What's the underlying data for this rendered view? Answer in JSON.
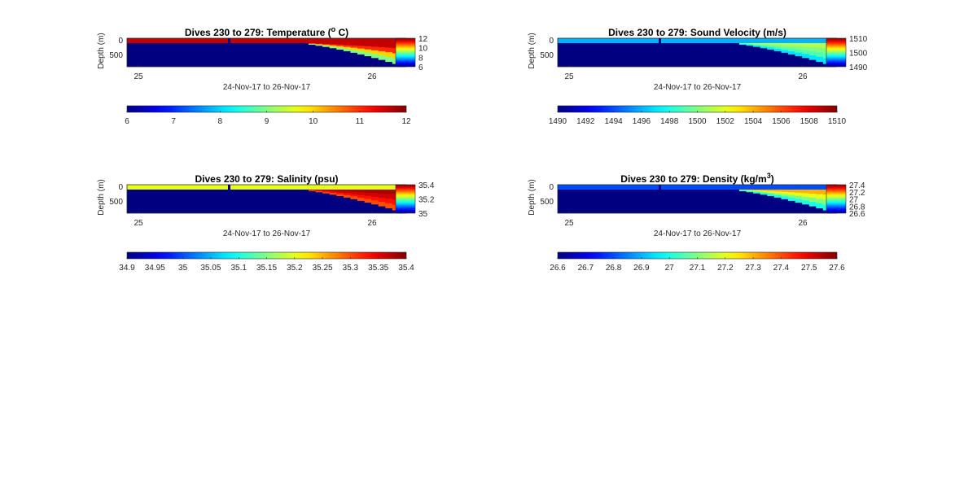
{
  "figure": {
    "time_label": "24-Nov-17 to 26-Nov-17",
    "ylabel": "Depth (m)",
    "y_ticks": [
      "0",
      "500"
    ],
    "x_ticks": [
      "25",
      "26"
    ]
  },
  "chart_data": [
    {
      "type": "heatmap",
      "title_prefix": "Dives 230 to 279: Temperature (",
      "title_sup": "o",
      "title_suffix": " C)",
      "xlabel": "24-Nov-17 to 26-Nov-17",
      "ylabel": "Depth (m)",
      "x_ticks": [
        "25",
        "26"
      ],
      "y_ticks": [
        "0",
        "500"
      ],
      "colorbar_ticks": [
        "12",
        "10",
        "8",
        "6"
      ],
      "wide_colorbar_ticks": [
        "6",
        "7",
        "8",
        "9",
        "10",
        "11",
        "12"
      ],
      "color_range": [
        6,
        12
      ],
      "surface_value": 11.6,
      "deep_value": 6.0,
      "shallow_gradient": [
        9,
        10,
        11,
        11.6
      ]
    },
    {
      "type": "heatmap",
      "title_prefix": "Dives 230 to 279: Sound Velocity (m/s)",
      "title_sup": "",
      "title_suffix": "",
      "xlabel": "24-Nov-17 to 26-Nov-17",
      "ylabel": "Depth (m)",
      "x_ticks": [
        "25",
        "26"
      ],
      "y_ticks": [
        "0",
        "500"
      ],
      "colorbar_ticks": [
        "1510",
        "1500",
        "1490"
      ],
      "wide_colorbar_ticks": [
        "1490",
        "1492",
        "1494",
        "1496",
        "1498",
        "1500",
        "1502",
        "1504",
        "1506",
        "1508",
        "1510"
      ],
      "color_range": [
        1490,
        1510
      ],
      "surface_value": 1496,
      "deep_value": 1490,
      "shallow_gradient": [
        1497,
        1499,
        1500,
        1501
      ]
    },
    {
      "type": "heatmap",
      "title_prefix": "Dives 230 to 279: Salinity (psu)",
      "title_sup": "",
      "title_suffix": "",
      "xlabel": "24-Nov-17 to 26-Nov-17",
      "ylabel": "Depth (m)",
      "x_ticks": [
        "25",
        "26"
      ],
      "y_ticks": [
        "0",
        "500"
      ],
      "colorbar_ticks": [
        "35.4",
        "35.2",
        "35"
      ],
      "wide_colorbar_ticks": [
        "34.9",
        "34.95",
        "35",
        "35.05",
        "35.1",
        "35.15",
        "35.2",
        "35.25",
        "35.3",
        "35.35",
        "35.4"
      ],
      "color_range": [
        34.9,
        35.4
      ],
      "surface_value": 35.2,
      "deep_value": 34.9,
      "shallow_gradient": [
        35.3,
        35.33,
        35.36,
        35.38
      ]
    },
    {
      "type": "heatmap",
      "title_prefix": "Dives 230 to 279: Density (kg/m",
      "title_sup": "3",
      "title_suffix": ")",
      "xlabel": "24-Nov-17 to 26-Nov-17",
      "ylabel": "Depth (m)",
      "x_ticks": [
        "25",
        "26"
      ],
      "y_ticks": [
        "0",
        "500"
      ],
      "colorbar_ticks": [
        "27.4",
        "27.2",
        "27",
        "26.8",
        "26.6"
      ],
      "wide_colorbar_ticks": [
        "26.6",
        "26.7",
        "26.8",
        "26.9",
        "27",
        "27.1",
        "27.2",
        "27.3",
        "27.4",
        "27.5",
        "27.6"
      ],
      "color_range": [
        26.6,
        27.6
      ],
      "surface_value": 26.8,
      "deep_value": 26.6,
      "shallow_gradient": [
        27.0,
        27.1,
        27.2,
        27.3
      ]
    }
  ]
}
